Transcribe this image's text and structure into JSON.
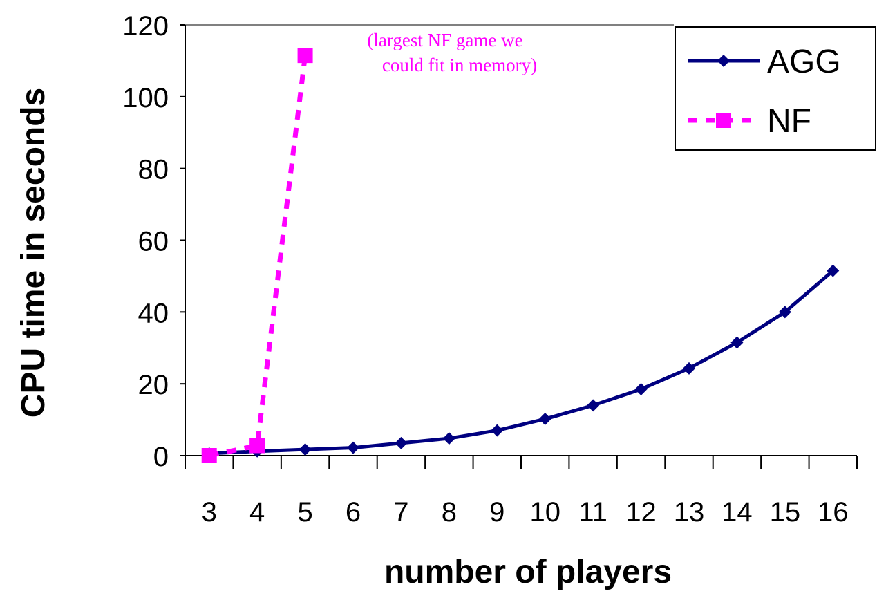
{
  "chart_data": {
    "type": "line",
    "title": "",
    "xlabel": "number of players",
    "ylabel": "CPU time in seconds",
    "categories": [
      "3",
      "4",
      "5",
      "6",
      "7",
      "8",
      "9",
      "10",
      "11",
      "12",
      "13",
      "14",
      "15",
      "16"
    ],
    "ylim": [
      0,
      120
    ],
    "yticks": [
      0,
      20,
      40,
      60,
      80,
      100,
      120
    ],
    "grid": false,
    "legend_position": "top-right",
    "series": [
      {
        "name": "AGG",
        "color": "#000080",
        "style": "solid",
        "marker": "diamond",
        "x": [
          "3",
          "4",
          "5",
          "6",
          "7",
          "8",
          "9",
          "10",
          "11",
          "12",
          "13",
          "14",
          "15",
          "16"
        ],
        "values": [
          0.6,
          1.2,
          1.7,
          2.2,
          3.5,
          4.8,
          7.0,
          10.2,
          14.0,
          18.5,
          24.3,
          31.5,
          40.0,
          51.5
        ]
      },
      {
        "name": "NF",
        "color": "#ff00ff",
        "style": "dashed",
        "marker": "square",
        "x": [
          "3",
          "4",
          "5"
        ],
        "values": [
          0.0,
          2.8,
          111.5
        ]
      }
    ],
    "annotations": [
      {
        "text_line1": "(largest NF game we",
        "text_line2": "could fit in memory)",
        "color": "#ff00ff"
      }
    ]
  }
}
